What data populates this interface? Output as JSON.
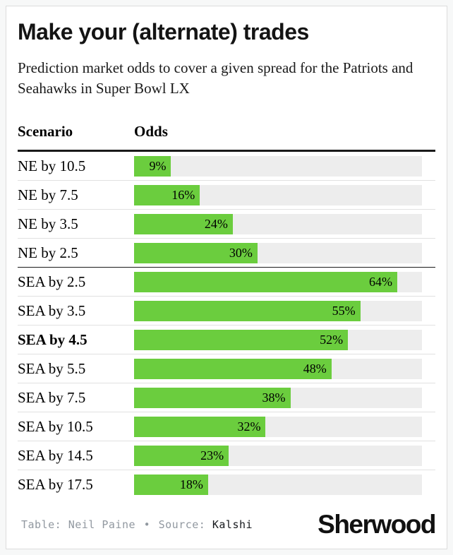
{
  "header": {
    "title": "Make your (alternate) trades",
    "subtitle": "Prediction market odds to cover a given spread for the Patriots and Seahawks in Super Bowl LX"
  },
  "table": {
    "scenario_header": "Scenario",
    "odds_header": "Odds"
  },
  "chart_data": {
    "type": "bar",
    "title": "Make your (alternate) trades",
    "subtitle": "Prediction market odds to cover a given spread for the Patriots and Seahawks in Super Bowl LX",
    "xlabel": "Odds",
    "ylabel": "Scenario",
    "xlim": [
      0,
      70
    ],
    "grid": false,
    "legend": "none",
    "bar_color": "#6bcd3e",
    "track_color": "#ededed",
    "categories": [
      "NE by 10.5",
      "NE by 7.5",
      "NE by 3.5",
      "NE by 2.5",
      "SEA by 2.5",
      "SEA by 3.5",
      "SEA by 4.5",
      "SEA by 5.5",
      "SEA by 7.5",
      "SEA by 10.5",
      "SEA by 14.5",
      "SEA by 17.5"
    ],
    "values": [
      9,
      16,
      24,
      30,
      64,
      55,
      52,
      48,
      38,
      32,
      23,
      18
    ],
    "rows": [
      {
        "label": "NE by 10.5",
        "value": 9,
        "display": "9%",
        "bold": false,
        "section_end": false
      },
      {
        "label": "NE by 7.5",
        "value": 16,
        "display": "16%",
        "bold": false,
        "section_end": false
      },
      {
        "label": "NE by 3.5",
        "value": 24,
        "display": "24%",
        "bold": false,
        "section_end": false
      },
      {
        "label": "NE by 2.5",
        "value": 30,
        "display": "30%",
        "bold": false,
        "section_end": true
      },
      {
        "label": "SEA by 2.5",
        "value": 64,
        "display": "64%",
        "bold": false,
        "section_end": false
      },
      {
        "label": "SEA by 3.5",
        "value": 55,
        "display": "55%",
        "bold": false,
        "section_end": false
      },
      {
        "label": "SEA by 4.5",
        "value": 52,
        "display": "52%",
        "bold": true,
        "section_end": false
      },
      {
        "label": "SEA by 5.5",
        "value": 48,
        "display": "48%",
        "bold": false,
        "section_end": false
      },
      {
        "label": "SEA by 7.5",
        "value": 38,
        "display": "38%",
        "bold": false,
        "section_end": false
      },
      {
        "label": "SEA by 10.5",
        "value": 32,
        "display": "32%",
        "bold": false,
        "section_end": false
      },
      {
        "label": "SEA by 14.5",
        "value": 23,
        "display": "23%",
        "bold": false,
        "section_end": false
      },
      {
        "label": "SEA by 17.5",
        "value": 18,
        "display": "18%",
        "bold": false,
        "section_end": false
      }
    ]
  },
  "footer": {
    "table_label": "Table:",
    "table_value": "Neil Paine",
    "separator": "•",
    "source_label": "Source:",
    "source_value": "Kalshi",
    "brand": "Sherwood"
  }
}
